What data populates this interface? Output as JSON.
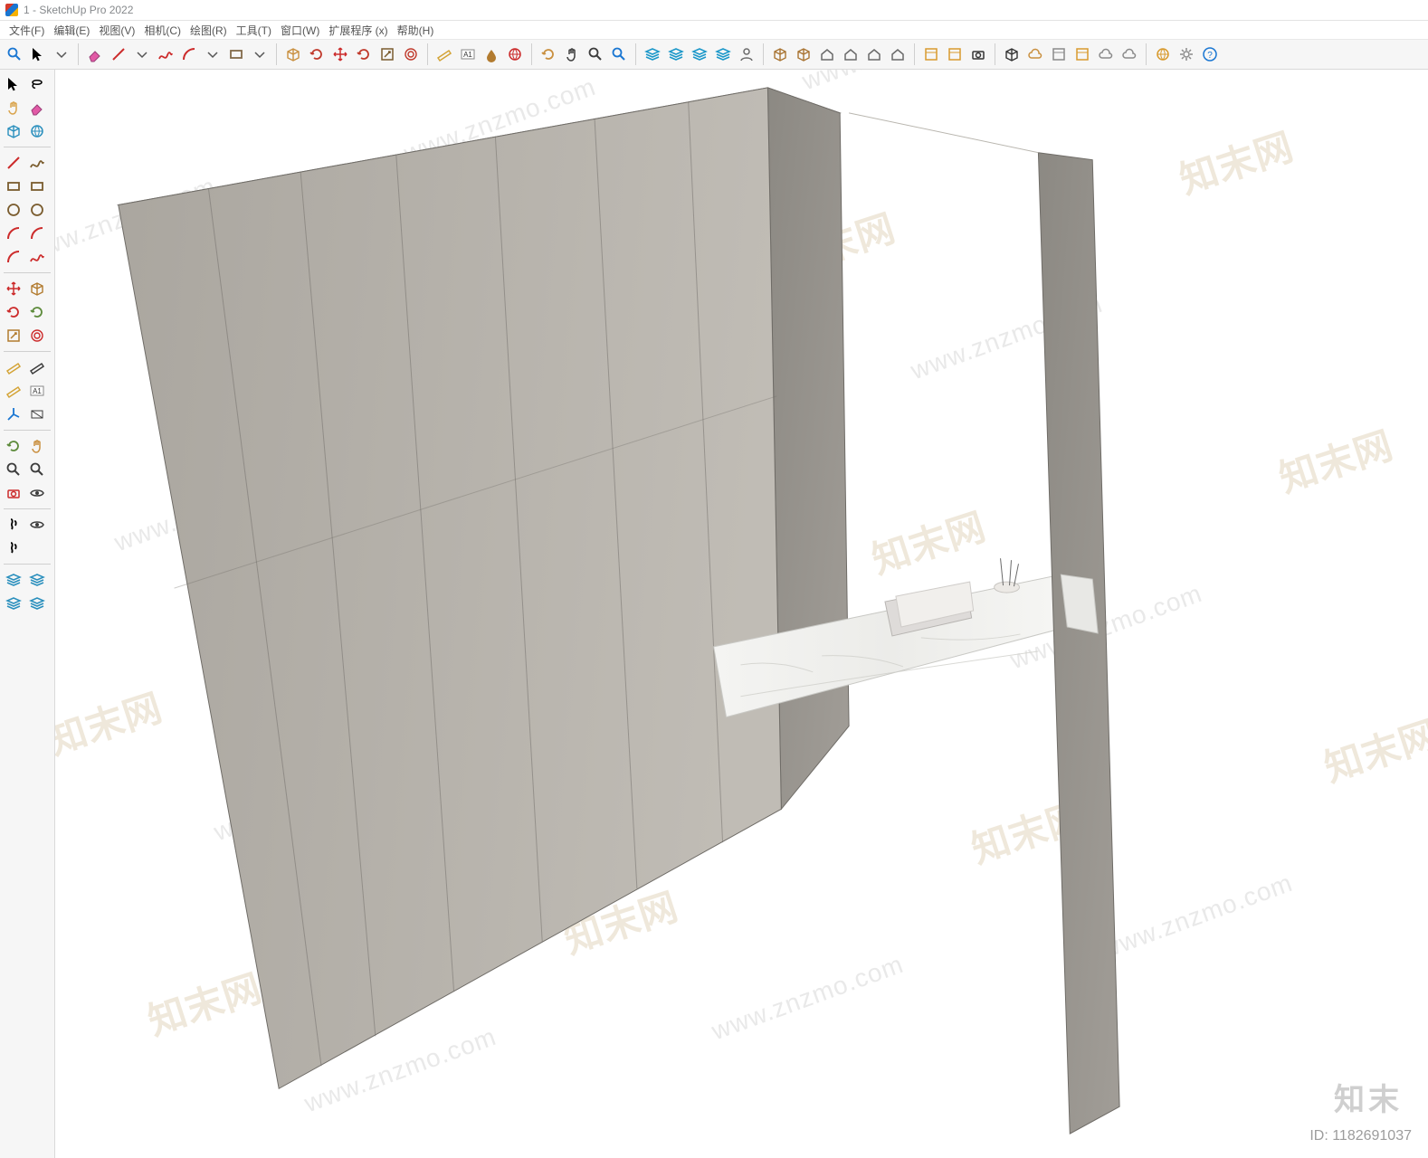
{
  "window": {
    "title": "1 - SketchUp Pro 2022"
  },
  "menubar": {
    "items": [
      "文件(F)",
      "编辑(E)",
      "视图(V)",
      "相机(C)",
      "绘图(R)",
      "工具(T)",
      "窗口(W)",
      "扩展程序 (x)",
      "帮助(H)"
    ]
  },
  "toolbar_h": {
    "groups": [
      [
        {
          "n": "search-icon",
          "c": "#1976d2"
        },
        {
          "n": "select-icon",
          "c": "#000"
        },
        {
          "n": "dropdown-icon",
          "c": "#000"
        }
      ],
      [
        {
          "n": "eraser-icon",
          "c": "#e25aa6"
        },
        {
          "n": "line-icon",
          "c": "#cc2b2b"
        },
        {
          "n": "dropdown-icon",
          "c": "#000"
        },
        {
          "n": "freehand-icon",
          "c": "#cc2b2b"
        },
        {
          "n": "arc-icon",
          "c": "#cc2b2b"
        },
        {
          "n": "dropdown-icon",
          "c": "#000"
        },
        {
          "n": "rectangle-icon",
          "c": "#826a4a"
        },
        {
          "n": "dropdown-icon",
          "c": "#000"
        }
      ],
      [
        {
          "n": "pushpull-icon",
          "c": "#c98f3e"
        },
        {
          "n": "followme-icon",
          "c": "#c0392b"
        },
        {
          "n": "move-icon",
          "c": "#cc2b2b"
        },
        {
          "n": "rotate-icon",
          "c": "#c0392b"
        },
        {
          "n": "scale-icon",
          "c": "#7a5c2e"
        },
        {
          "n": "offset-icon",
          "c": "#c0392b"
        }
      ],
      [
        {
          "n": "tape-icon",
          "c": "#d4a437"
        },
        {
          "n": "text-icon",
          "c": "#333",
          "t": "A1"
        },
        {
          "n": "paint-icon",
          "c": "#b27b2f"
        },
        {
          "n": "extension-icon",
          "c": "#cc2b2b"
        }
      ],
      [
        {
          "n": "orbit-icon",
          "c": "#c98f3e"
        },
        {
          "n": "pan-icon",
          "c": "#3c3c3c"
        },
        {
          "n": "zoom-icon",
          "c": "#3c3c3c"
        },
        {
          "n": "zoom-extents-icon",
          "c": "#1976d2"
        }
      ],
      [
        {
          "n": "layers-1-icon",
          "c": "#1a97c9"
        },
        {
          "n": "layers-2-icon",
          "c": "#1a97c9"
        },
        {
          "n": "layers-3-icon",
          "c": "#1a97c9"
        },
        {
          "n": "layers-4-icon",
          "c": "#1a97c9"
        },
        {
          "n": "user-icon",
          "c": "#6a6a6a"
        }
      ],
      [
        {
          "n": "package-1-icon",
          "c": "#a97432"
        },
        {
          "n": "package-2-icon",
          "c": "#a97432"
        },
        {
          "n": "house-1-icon",
          "c": "#6a6a6a"
        },
        {
          "n": "house-2-icon",
          "c": "#6a6a6a"
        },
        {
          "n": "house-3-icon",
          "c": "#6a6a6a"
        },
        {
          "n": "house-4-icon",
          "c": "#6a6a6a"
        }
      ],
      [
        {
          "n": "window-icon",
          "c": "#d89a2e"
        },
        {
          "n": "export-icon",
          "c": "#d89a2e"
        },
        {
          "n": "camera-icon",
          "c": "#333"
        }
      ],
      [
        {
          "n": "cube-icon",
          "c": "#333"
        },
        {
          "n": "cloud-up-icon",
          "c": "#c98f3e"
        },
        {
          "n": "doc-icon",
          "c": "#8a8a8a"
        },
        {
          "n": "grid-icon",
          "c": "#d89a2e"
        },
        {
          "n": "cloud-icon",
          "c": "#8a8a8a"
        },
        {
          "n": "cloud-down-icon",
          "c": "#8a8a8a"
        }
      ],
      [
        {
          "n": "plugin-icon",
          "c": "#d89a2e"
        },
        {
          "n": "settings-icon",
          "c": "#8a8a8a"
        },
        {
          "n": "help-icon",
          "c": "#1976d2"
        }
      ]
    ]
  },
  "toolbar_v": {
    "rows": [
      [
        {
          "n": "select-arrow-icon",
          "c": "#000"
        },
        {
          "n": "lasso-icon",
          "c": "#000"
        }
      ],
      [
        {
          "n": "hand-icon",
          "c": "#d9a34a"
        },
        {
          "n": "eraser-icon",
          "c": "#e25aa6"
        }
      ],
      [
        {
          "n": "component-icon",
          "c": "#2a8fbd"
        },
        {
          "n": "geolocation-icon",
          "c": "#2a8fbd"
        }
      ],
      "sep",
      [
        {
          "n": "pencil-icon",
          "c": "#cc2b2b"
        },
        {
          "n": "freehand-squiggle-icon",
          "c": "#7a5c2e"
        }
      ],
      [
        {
          "n": "rect-icon",
          "c": "#7a5c2e"
        },
        {
          "n": "rect-rot-icon",
          "c": "#7a5c2e"
        }
      ],
      [
        {
          "n": "circle-icon",
          "c": "#7a5c2e"
        },
        {
          "n": "polygon-icon",
          "c": "#7a5c2e"
        }
      ],
      [
        {
          "n": "arc-icon",
          "c": "#cc2b2b"
        },
        {
          "n": "arc2-icon",
          "c": "#cc2b2b"
        }
      ],
      [
        {
          "n": "pie-icon",
          "c": "#cc2b2b"
        },
        {
          "n": "bezier-icon",
          "c": "#cc2b2b"
        }
      ],
      "sep",
      [
        {
          "n": "move-icon",
          "c": "#cc2b2b"
        },
        {
          "n": "pushpull-icon",
          "c": "#b27b2f"
        }
      ],
      [
        {
          "n": "rotate-icon",
          "c": "#cc2b2b"
        },
        {
          "n": "followme-icon",
          "c": "#5c8a3a"
        }
      ],
      [
        {
          "n": "scale-icon",
          "c": "#b27b2f"
        },
        {
          "n": "offset-icon",
          "c": "#cc2b2b"
        }
      ],
      "sep",
      [
        {
          "n": "tape-icon",
          "c": "#d4a437"
        },
        {
          "n": "dimension-icon",
          "c": "#3c3c3c"
        }
      ],
      [
        {
          "n": "protractor-icon",
          "c": "#d4a437"
        },
        {
          "n": "text-label-icon",
          "c": "#3c3c3c",
          "t": "A1"
        }
      ],
      [
        {
          "n": "axes-icon",
          "c": "#1976d2"
        },
        {
          "n": "section-icon",
          "c": "#3c3c3c"
        }
      ],
      "sep",
      [
        {
          "n": "orbit-icon",
          "c": "#5c8a3a"
        },
        {
          "n": "pan-icon",
          "c": "#c98f3e"
        }
      ],
      [
        {
          "n": "zoom-icon",
          "c": "#3c3c3c"
        },
        {
          "n": "zoom-window-icon",
          "c": "#3c3c3c"
        }
      ],
      [
        {
          "n": "position-camera-icon",
          "c": "#cc2b2b"
        },
        {
          "n": "look-around-icon",
          "c": "#3c3c3c"
        }
      ],
      "sep",
      [
        {
          "n": "walk-icon",
          "c": "#000"
        },
        {
          "n": "eye-icon",
          "c": "#3c3c3c"
        }
      ],
      [
        {
          "n": "shoes-icon",
          "c": "#000"
        },
        {
          "n": "blank",
          "c": "#fff"
        }
      ],
      "sep",
      [
        {
          "n": "sandbox-1-icon",
          "c": "#2a8fbd"
        },
        {
          "n": "sandbox-2-icon",
          "c": "#2a8fbd"
        }
      ],
      [
        {
          "n": "sandbox-3-icon",
          "c": "#2a8fbd"
        },
        {
          "n": "sandbox-4-icon",
          "c": "#2a8fbd"
        }
      ]
    ]
  },
  "viewport": {
    "bg": "#ffffff",
    "cabinet": {
      "fill": "#b4b0aa",
      "stroke": "#7d7a75",
      "dark": "#8e8b85",
      "shelf": "#f2f2f0"
    },
    "watermarks": {
      "text": "www.znzmo.com",
      "zh": "知末网"
    }
  },
  "footer": {
    "brand": "知末",
    "id_label": "ID: 1182691037"
  }
}
